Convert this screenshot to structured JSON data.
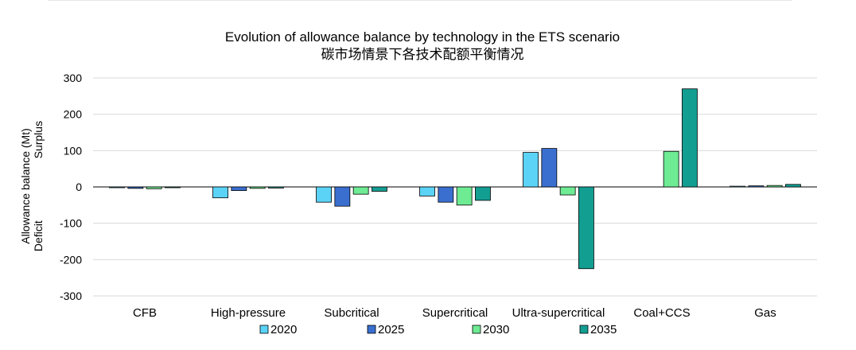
{
  "chart_data": {
    "type": "bar",
    "title": "Evolution of allowance balance by technology in the ETS scenario",
    "subtitle": "碳市场情景下各技术配额平衡情况",
    "ylabel": "Allowance balance (Mt)",
    "ylabel_secondary": "Deficit                    Surplus",
    "xlabel": "",
    "ylim": [
      -300,
      300
    ],
    "yticks": [
      300,
      200,
      100,
      0,
      -100,
      -200,
      -300
    ],
    "grid": true,
    "legend_position": "bottom",
    "categories": [
      "CFB",
      "High-pressure",
      "Subcritical",
      "Supercritical",
      "Ultra-supercritical",
      "Coal+CCS",
      "Gas"
    ],
    "series": [
      {
        "name": "2020",
        "color": "#5BD3F7",
        "values": [
          -1,
          -30,
          -42,
          -25,
          95,
          0,
          2
        ]
      },
      {
        "name": "2025",
        "color": "#3A6FD0",
        "values": [
          -4,
          -10,
          -53,
          -42,
          106,
          0,
          3
        ]
      },
      {
        "name": "2030",
        "color": "#6EEB93",
        "values": [
          -5,
          -4,
          -20,
          -50,
          -22,
          98,
          4
        ]
      },
      {
        "name": "2035",
        "color": "#139E92",
        "values": [
          -2,
          -3,
          -12,
          -37,
          -225,
          270,
          7
        ]
      }
    ]
  }
}
